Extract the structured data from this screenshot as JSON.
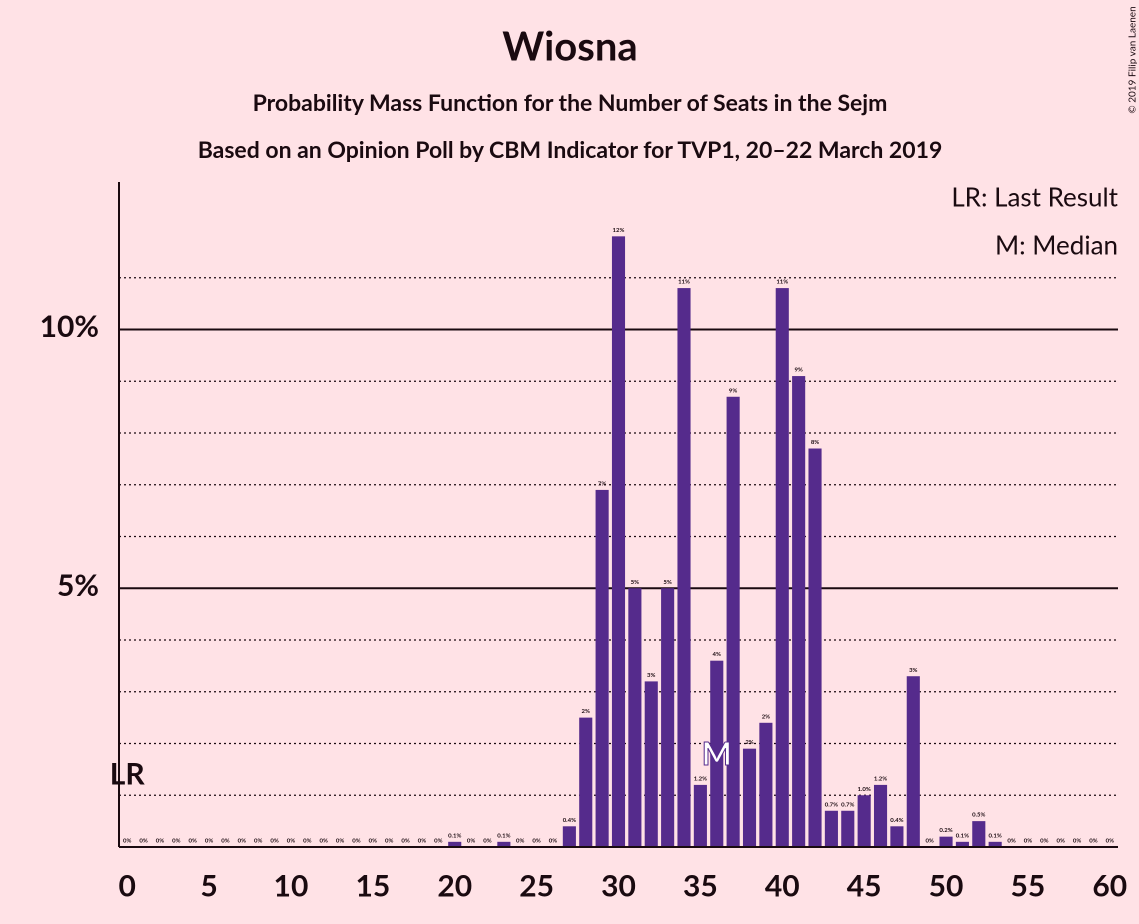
{
  "chart_data": {
    "type": "bar",
    "title": "Wiosna",
    "subtitle": "Probability Mass Function for the Number of Seats in the Sejm",
    "subtitle2": "Based on an Opinion Poll by CBM Indicator for TVP1, 20–22 March 2019",
    "copyright": "© 2019 Filip van Laenen",
    "legend": [
      "LR: Last Result",
      "M: Median"
    ],
    "last_result": {
      "seats": 0,
      "label": "LR"
    },
    "median": {
      "seats": 36,
      "label": "M"
    },
    "color": "#552b8c",
    "categories": [
      0,
      1,
      2,
      3,
      4,
      5,
      6,
      7,
      8,
      9,
      10,
      11,
      12,
      13,
      14,
      15,
      16,
      17,
      18,
      19,
      20,
      21,
      22,
      23,
      24,
      25,
      26,
      27,
      28,
      29,
      30,
      31,
      32,
      33,
      34,
      35,
      36,
      37,
      38,
      39,
      40,
      41,
      42,
      43,
      44,
      45,
      46,
      47,
      48,
      49,
      50,
      51,
      52,
      53,
      54,
      55,
      56,
      57,
      58,
      59,
      60
    ],
    "values": [
      0,
      0,
      0,
      0,
      0,
      0,
      0,
      0,
      0,
      0,
      0,
      0,
      0,
      0,
      0,
      0,
      0,
      0,
      0,
      0,
      0.1,
      0,
      0,
      0.1,
      0,
      0,
      0,
      0.4,
      2.5,
      6.9,
      11.8,
      5.0,
      3.2,
      5.0,
      10.8,
      1.2,
      3.6,
      8.7,
      1.9,
      2.4,
      10.8,
      9.1,
      7.7,
      0.7,
      0.7,
      1.0,
      1.2,
      0.4,
      3.3,
      0,
      0.2,
      0.1,
      0.5,
      0.1,
      0,
      0,
      0,
      0,
      0,
      0,
      0
    ],
    "value_labels": [
      "0%",
      "0%",
      "0%",
      "0%",
      "0%",
      "0%",
      "0%",
      "0%",
      "0%",
      "0%",
      "0%",
      "0%",
      "0%",
      "0%",
      "0%",
      "0%",
      "0%",
      "0%",
      "0%",
      "0%",
      "0.1%",
      "0%",
      "0%",
      "0.1%",
      "0%",
      "0%",
      "0%",
      "0.4%",
      "2%",
      "7%",
      "12%",
      "5%",
      "3%",
      "5%",
      "11%",
      "1.2%",
      "4%",
      "9%",
      "2%",
      "2%",
      "11%",
      "9%",
      "8%",
      "0.7%",
      "0.7%",
      "1.0%",
      "1.2%",
      "0.4%",
      "3%",
      "0%",
      "0.2%",
      "0.1%",
      "0.5%",
      "0.1%",
      "0%",
      "0%",
      "0%",
      "0%",
      "0%",
      "0%",
      "0%"
    ],
    "xlim": [
      -0.5,
      60.5
    ],
    "xticks": [
      0,
      5,
      10,
      15,
      20,
      25,
      30,
      35,
      40,
      45,
      50,
      55,
      60
    ],
    "ylim": [
      0,
      12.85
    ],
    "yticks": [
      {
        "value": 5,
        "label": "5%"
      },
      {
        "value": 10,
        "label": "10%"
      }
    ],
    "yminor": [
      1,
      2,
      3,
      4,
      6,
      7,
      8,
      9,
      11
    ],
    "grid": true
  }
}
